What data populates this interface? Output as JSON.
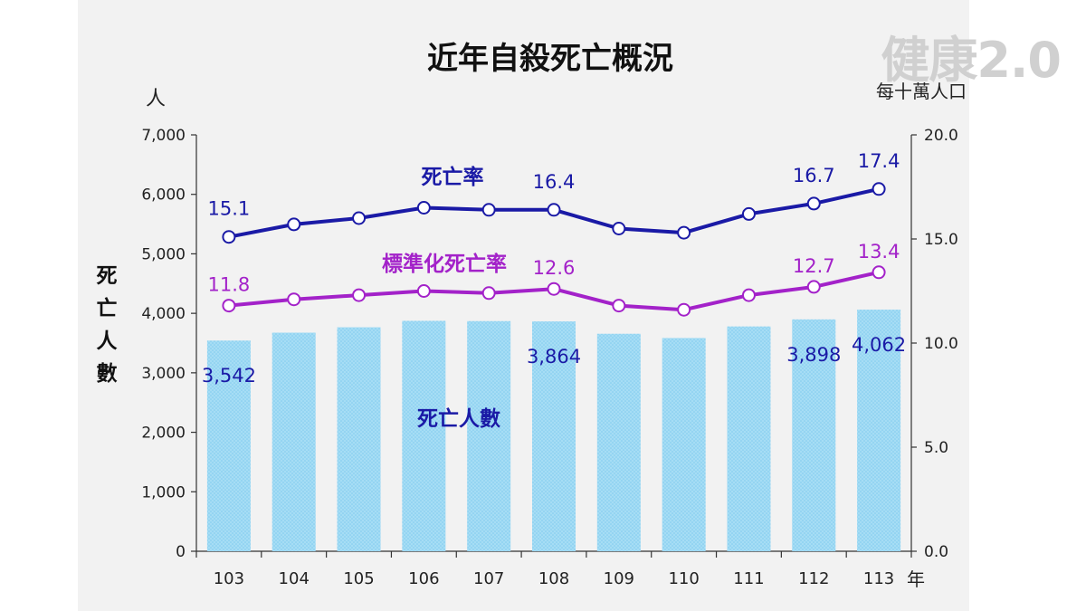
{
  "watermark": "健康2.0",
  "chart_data": {
    "type": "bar",
    "title": "近年自殺死亡概況",
    "left_axis": {
      "unit_label": "人",
      "title": "死亡人數",
      "ylim": [
        0,
        7000
      ],
      "ticks": [
        "0",
        "1,000",
        "2,000",
        "3,000",
        "4,000",
        "5,000",
        "6,000",
        "7,000"
      ]
    },
    "right_axis": {
      "unit_label": "每十萬人口",
      "ylim": [
        0,
        20
      ],
      "ticks": [
        "0.0",
        "5.0",
        "10.0",
        "15.0",
        "20.0"
      ]
    },
    "x_unit": "年",
    "categories": [
      "103",
      "104",
      "105",
      "106",
      "107",
      "108",
      "109",
      "110",
      "111",
      "112",
      "113"
    ],
    "series": [
      {
        "name": "死亡人數",
        "type": "bar",
        "axis": "left",
        "color": "#a6ddf5",
        "values": [
          3542,
          3675,
          3766,
          3873,
          3869,
          3864,
          3656,
          3585,
          3779,
          3898,
          4062
        ],
        "labels": [
          "3,542",
          "",
          "",
          "",
          "",
          "3,864",
          "",
          "",
          "",
          "3,898",
          "4,062"
        ]
      },
      {
        "name": "死亡率",
        "type": "line",
        "axis": "right",
        "color": "#1a1aa6",
        "values": [
          15.1,
          15.7,
          16.0,
          16.5,
          16.4,
          16.4,
          15.5,
          15.3,
          16.2,
          16.7,
          17.4
        ],
        "labels": [
          "15.1",
          "",
          "",
          "",
          "",
          "16.4",
          "",
          "",
          "",
          "16.7",
          "17.4"
        ]
      },
      {
        "name": "標準化死亡率",
        "type": "line",
        "axis": "right",
        "color": "#a322c9",
        "values": [
          11.8,
          12.1,
          12.3,
          12.5,
          12.4,
          12.6,
          11.8,
          11.6,
          12.3,
          12.7,
          13.4
        ],
        "labels": [
          "11.8",
          "",
          "",
          "",
          "",
          "12.6",
          "",
          "",
          "",
          "12.7",
          "13.4"
        ]
      }
    ]
  }
}
